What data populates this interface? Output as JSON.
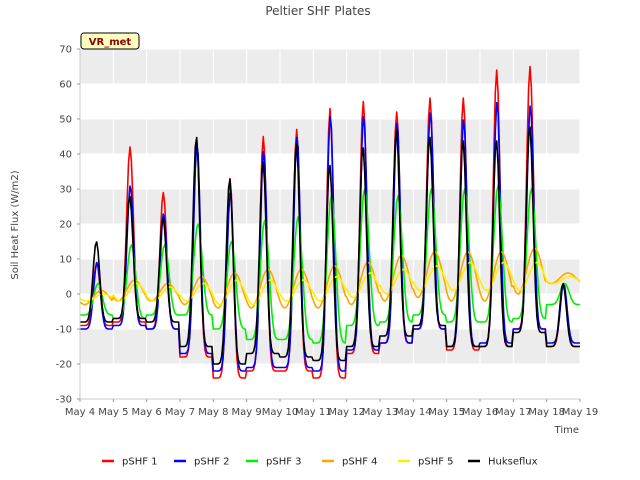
{
  "chart_data": {
    "type": "line",
    "title": "Peltier SHF Plates",
    "xlabel": "Time",
    "ylabel": "Soil Heat Flux (W/m2)",
    "ylim": [
      -30,
      70
    ],
    "yticks": [
      -30,
      -20,
      -10,
      0,
      10,
      20,
      30,
      40,
      50,
      60,
      70
    ],
    "xlim": [
      "2024-05-04",
      "2024-05-19"
    ],
    "xticks": [
      "May 4",
      "May 5",
      "May 6",
      "May 7",
      "May 8",
      "May 9",
      "May 10",
      "May 11",
      "May 12",
      "May 13",
      "May 14",
      "May 15",
      "May 16",
      "May 17",
      "May 18",
      "May 19"
    ],
    "grid": true,
    "shaded_bands": true,
    "legend_position": "bottom",
    "annotation": "VR_met",
    "day_labels": [
      "May 4",
      "May 5",
      "May 6",
      "May 7",
      "May 8",
      "May 9",
      "May 10",
      "May 11",
      "May 12",
      "May 13",
      "May 14",
      "May 15",
      "May 16",
      "May 17",
      "May 18"
    ],
    "series": [
      {
        "name": "pSHF 1",
        "color": "#ff0000",
        "daily_min": [
          -9,
          -8,
          -10,
          -18,
          -24,
          -22,
          -22,
          -24,
          -17,
          -14,
          -10,
          -16,
          -15,
          -10,
          -15
        ],
        "daily_max": [
          9,
          42,
          29,
          44,
          33,
          45,
          47,
          53,
          55,
          52,
          56,
          56,
          64,
          65,
          3
        ]
      },
      {
        "name": "pSHF 2",
        "color": "#0000ff",
        "daily_min": [
          -10,
          -9,
          -10,
          -17,
          -22,
          -21,
          -21,
          -22,
          -16,
          -14,
          -10,
          -15,
          -14,
          -10,
          -14
        ],
        "daily_max": [
          9,
          31,
          23,
          43,
          29,
          41,
          45,
          51,
          51,
          49,
          52,
          50,
          55,
          54,
          3
        ]
      },
      {
        "name": "pSHF 3",
        "color": "#00ee00",
        "daily_min": [
          -6,
          -7,
          -6,
          -6,
          -10,
          -13,
          -13,
          -14,
          -9,
          -8,
          -6,
          -8,
          -8,
          -7,
          -3
        ],
        "daily_max": [
          3,
          14,
          14,
          20,
          15,
          21,
          22,
          28,
          30,
          28,
          30,
          30,
          31,
          30,
          3
        ]
      },
      {
        "name": "pSHF 4",
        "color": "#ffa500",
        "daily_min": [
          -3,
          -2,
          -2,
          -3,
          -4,
          -4,
          -4,
          -4,
          -3,
          -2,
          -1,
          -2,
          -2,
          0,
          3
        ],
        "daily_max": [
          1,
          4,
          3,
          5,
          6,
          7,
          7,
          8,
          9,
          11,
          12,
          12,
          12,
          13,
          6
        ]
      },
      {
        "name": "pSHF 5",
        "color": "#ffee00",
        "daily_min": [
          -2,
          -2,
          -2,
          -2,
          -3,
          -3,
          -2,
          -2,
          -1,
          0,
          1,
          1,
          1,
          1,
          3
        ],
        "daily_max": [
          0,
          3,
          2,
          3,
          4,
          4,
          4,
          5,
          6,
          7,
          8,
          9,
          9,
          9,
          5
        ]
      },
      {
        "name": "Hukseflux",
        "color": "#000000",
        "daily_min": [
          -8,
          -7,
          -8,
          -15,
          -20,
          -17,
          -18,
          -19,
          -15,
          -12,
          -9,
          -15,
          -15,
          -11,
          -15
        ],
        "daily_max": [
          15,
          28,
          22,
          45,
          33,
          38,
          43,
          37,
          42,
          47,
          45,
          44,
          44,
          48,
          3
        ]
      }
    ]
  }
}
